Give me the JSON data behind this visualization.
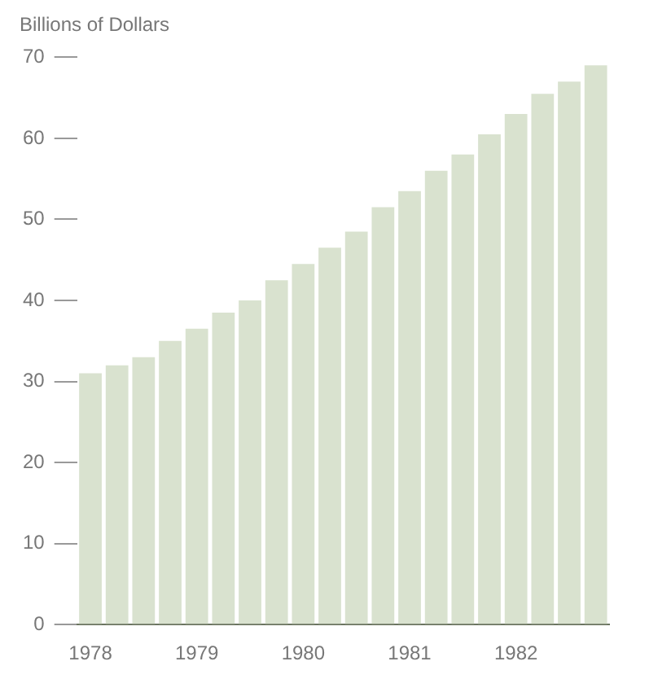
{
  "chart_data": {
    "type": "bar",
    "ylabel": "Billions of Dollars",
    "categories": [
      "1978",
      null,
      null,
      null,
      "1979",
      null,
      null,
      null,
      "1980",
      null,
      null,
      null,
      "1981",
      null,
      null,
      null,
      "1982",
      null,
      null,
      null
    ],
    "values": [
      31,
      32,
      33,
      35,
      36.5,
      38.5,
      40,
      42.5,
      44.5,
      46.5,
      48.5,
      51.5,
      53.5,
      56,
      58,
      60.5,
      63,
      65.5,
      67,
      69
    ],
    "color": "#d9e2cf",
    "ylim": [
      0,
      70
    ],
    "yticks": [
      0,
      10,
      20,
      30,
      40,
      50,
      60,
      70
    ],
    "grid": false,
    "legend": false
  }
}
